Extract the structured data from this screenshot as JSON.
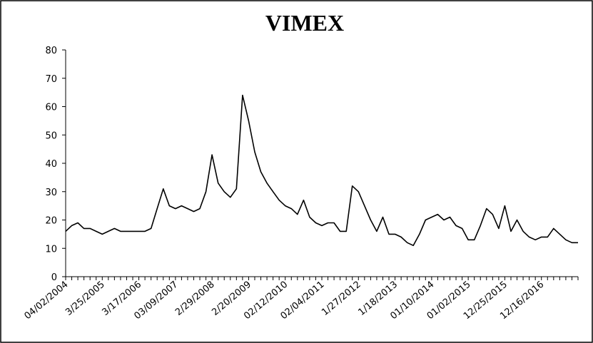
{
  "chart_data": {
    "type": "line",
    "title": "VIMEX",
    "categories": [
      "04/02/2004",
      null,
      null,
      null,
      null,
      null,
      "3/25/2005",
      null,
      null,
      null,
      null,
      null,
      "3/17/2006",
      null,
      null,
      null,
      null,
      null,
      "03/09/2007",
      null,
      null,
      null,
      null,
      null,
      "2/29/2008",
      null,
      null,
      null,
      null,
      null,
      "2/20/2009",
      null,
      null,
      null,
      null,
      null,
      "02/12/2010",
      null,
      null,
      null,
      null,
      null,
      "02/04/2011",
      null,
      null,
      null,
      null,
      null,
      "1/27/2012",
      null,
      null,
      null,
      null,
      null,
      "1/18/2013",
      null,
      null,
      null,
      null,
      null,
      "01/10/2014",
      null,
      null,
      null,
      null,
      null,
      "01/02/2015",
      null,
      null,
      null,
      null,
      null,
      "12/25/2015",
      null,
      null,
      null,
      null,
      null,
      "12/16/2016",
      null,
      null,
      null,
      null,
      null,
      null
    ],
    "series": [
      {
        "name": "VIMEX",
        "color": "#000000",
        "values": [
          16,
          18,
          19,
          17,
          17,
          16,
          15,
          16,
          17,
          16,
          16,
          16,
          16,
          16,
          17,
          24,
          31,
          25,
          24,
          25,
          24,
          23,
          24,
          30,
          43,
          33,
          30,
          28,
          31,
          64,
          55,
          44,
          37,
          33,
          30,
          27,
          25,
          24,
          22,
          27,
          21,
          19,
          18,
          19,
          19,
          16,
          16,
          32,
          30,
          25,
          20,
          16,
          21,
          15,
          15,
          14,
          12,
          11,
          15,
          20,
          21,
          22,
          20,
          21,
          18,
          17,
          13,
          13,
          18,
          24,
          22,
          17,
          25,
          16,
          20,
          16,
          14,
          13,
          14,
          14,
          17,
          15,
          13,
          12,
          12
        ]
      }
    ],
    "ylim": [
      0,
      80
    ],
    "yticks": [
      0,
      10,
      20,
      30,
      40,
      50,
      60,
      70,
      80
    ]
  }
}
